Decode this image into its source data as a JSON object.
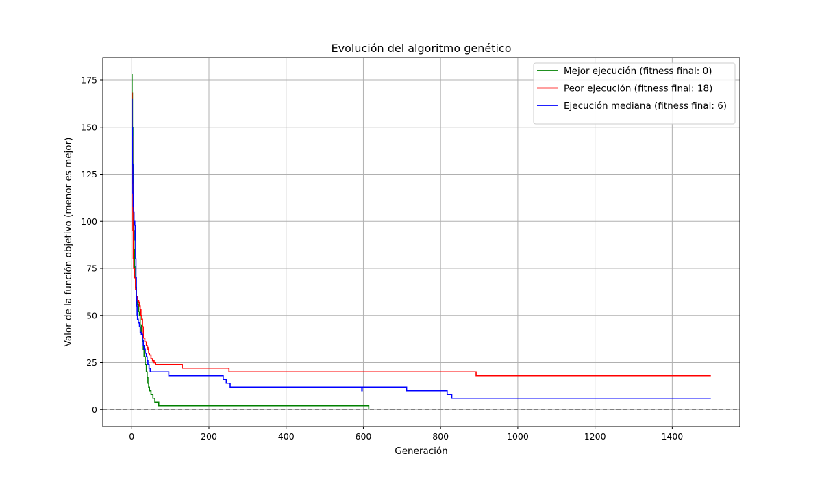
{
  "chart_data": {
    "type": "line",
    "title": "Evolución del algoritmo genético",
    "xlabel": "Generación",
    "ylabel": "Valor de la función objetivo (menor es mejor)",
    "xlim": [
      -75,
      1575
    ],
    "ylim": [
      -9,
      187
    ],
    "xticks": [
      0,
      200,
      400,
      600,
      800,
      1000,
      1200,
      1400
    ],
    "yticks": [
      0,
      25,
      50,
      75,
      100,
      125,
      150,
      175
    ],
    "grid": true,
    "legend_position": "top-right",
    "reference_line": {
      "y": 0,
      "color": "#808080",
      "style": "dashed"
    },
    "series": [
      {
        "name": "Mejor ejecución (fitness final: 0)",
        "color": "#008000",
        "steps": [
          [
            0,
            178
          ],
          [
            1,
            168
          ],
          [
            2,
            150
          ],
          [
            3,
            130
          ],
          [
            4,
            110
          ],
          [
            5,
            95
          ],
          [
            6,
            85
          ],
          [
            7,
            76
          ],
          [
            8,
            70
          ],
          [
            10,
            65
          ],
          [
            12,
            60
          ],
          [
            15,
            56
          ],
          [
            18,
            52
          ],
          [
            20,
            50
          ],
          [
            22,
            45
          ],
          [
            25,
            40
          ],
          [
            28,
            36
          ],
          [
            30,
            32
          ],
          [
            32,
            28
          ],
          [
            35,
            24
          ],
          [
            38,
            20
          ],
          [
            40,
            17
          ],
          [
            42,
            14
          ],
          [
            44,
            12
          ],
          [
            46,
            10
          ],
          [
            50,
            8
          ],
          [
            55,
            6
          ],
          [
            60,
            4
          ],
          [
            70,
            2
          ],
          [
            612,
            2
          ],
          [
            614,
            0
          ]
        ]
      },
      {
        "name": "Peor ejecución (fitness final: 18)",
        "color": "#ff0000",
        "steps": [
          [
            0,
            168
          ],
          [
            1,
            145
          ],
          [
            2,
            120
          ],
          [
            3,
            95
          ],
          [
            4,
            80
          ],
          [
            5,
            75
          ],
          [
            7,
            70
          ],
          [
            10,
            64
          ],
          [
            12,
            60
          ],
          [
            15,
            58
          ],
          [
            18,
            57
          ],
          [
            20,
            55
          ],
          [
            22,
            53
          ],
          [
            24,
            50
          ],
          [
            26,
            48
          ],
          [
            28,
            44
          ],
          [
            30,
            38
          ],
          [
            34,
            36
          ],
          [
            38,
            34
          ],
          [
            40,
            33
          ],
          [
            42,
            32
          ],
          [
            44,
            30
          ],
          [
            46,
            29
          ],
          [
            50,
            27
          ],
          [
            54,
            26
          ],
          [
            58,
            25
          ],
          [
            62,
            24
          ],
          [
            130,
            24
          ],
          [
            131,
            22
          ],
          [
            250,
            22
          ],
          [
            252,
            20
          ],
          [
            890,
            20
          ],
          [
            892,
            18
          ],
          [
            1500,
            18
          ]
        ]
      },
      {
        "name": "Ejecución mediana (fitness final: 6)",
        "color": "#0000ff",
        "steps": [
          [
            0,
            165
          ],
          [
            1,
            150
          ],
          [
            2,
            130
          ],
          [
            3,
            115
          ],
          [
            4,
            108
          ],
          [
            5,
            105
          ],
          [
            6,
            100
          ],
          [
            8,
            98
          ],
          [
            9,
            90
          ],
          [
            10,
            80
          ],
          [
            11,
            70
          ],
          [
            12,
            60
          ],
          [
            13,
            55
          ],
          [
            14,
            50
          ],
          [
            15,
            48
          ],
          [
            17,
            46
          ],
          [
            20,
            44
          ],
          [
            22,
            41
          ],
          [
            25,
            40
          ],
          [
            28,
            37
          ],
          [
            30,
            34
          ],
          [
            32,
            32
          ],
          [
            35,
            30
          ],
          [
            38,
            28
          ],
          [
            40,
            26
          ],
          [
            42,
            24
          ],
          [
            45,
            22
          ],
          [
            48,
            20
          ],
          [
            95,
            20
          ],
          [
            96,
            18
          ],
          [
            235,
            18
          ],
          [
            237,
            16
          ],
          [
            245,
            14
          ],
          [
            255,
            12
          ],
          [
            595,
            12
          ],
          [
            596,
            10
          ],
          [
            597,
            12
          ],
          [
            710,
            12
          ],
          [
            712,
            10
          ],
          [
            815,
            10
          ],
          [
            817,
            8
          ],
          [
            827,
            8
          ],
          [
            829,
            6
          ],
          [
            1500,
            6
          ]
        ]
      }
    ]
  }
}
